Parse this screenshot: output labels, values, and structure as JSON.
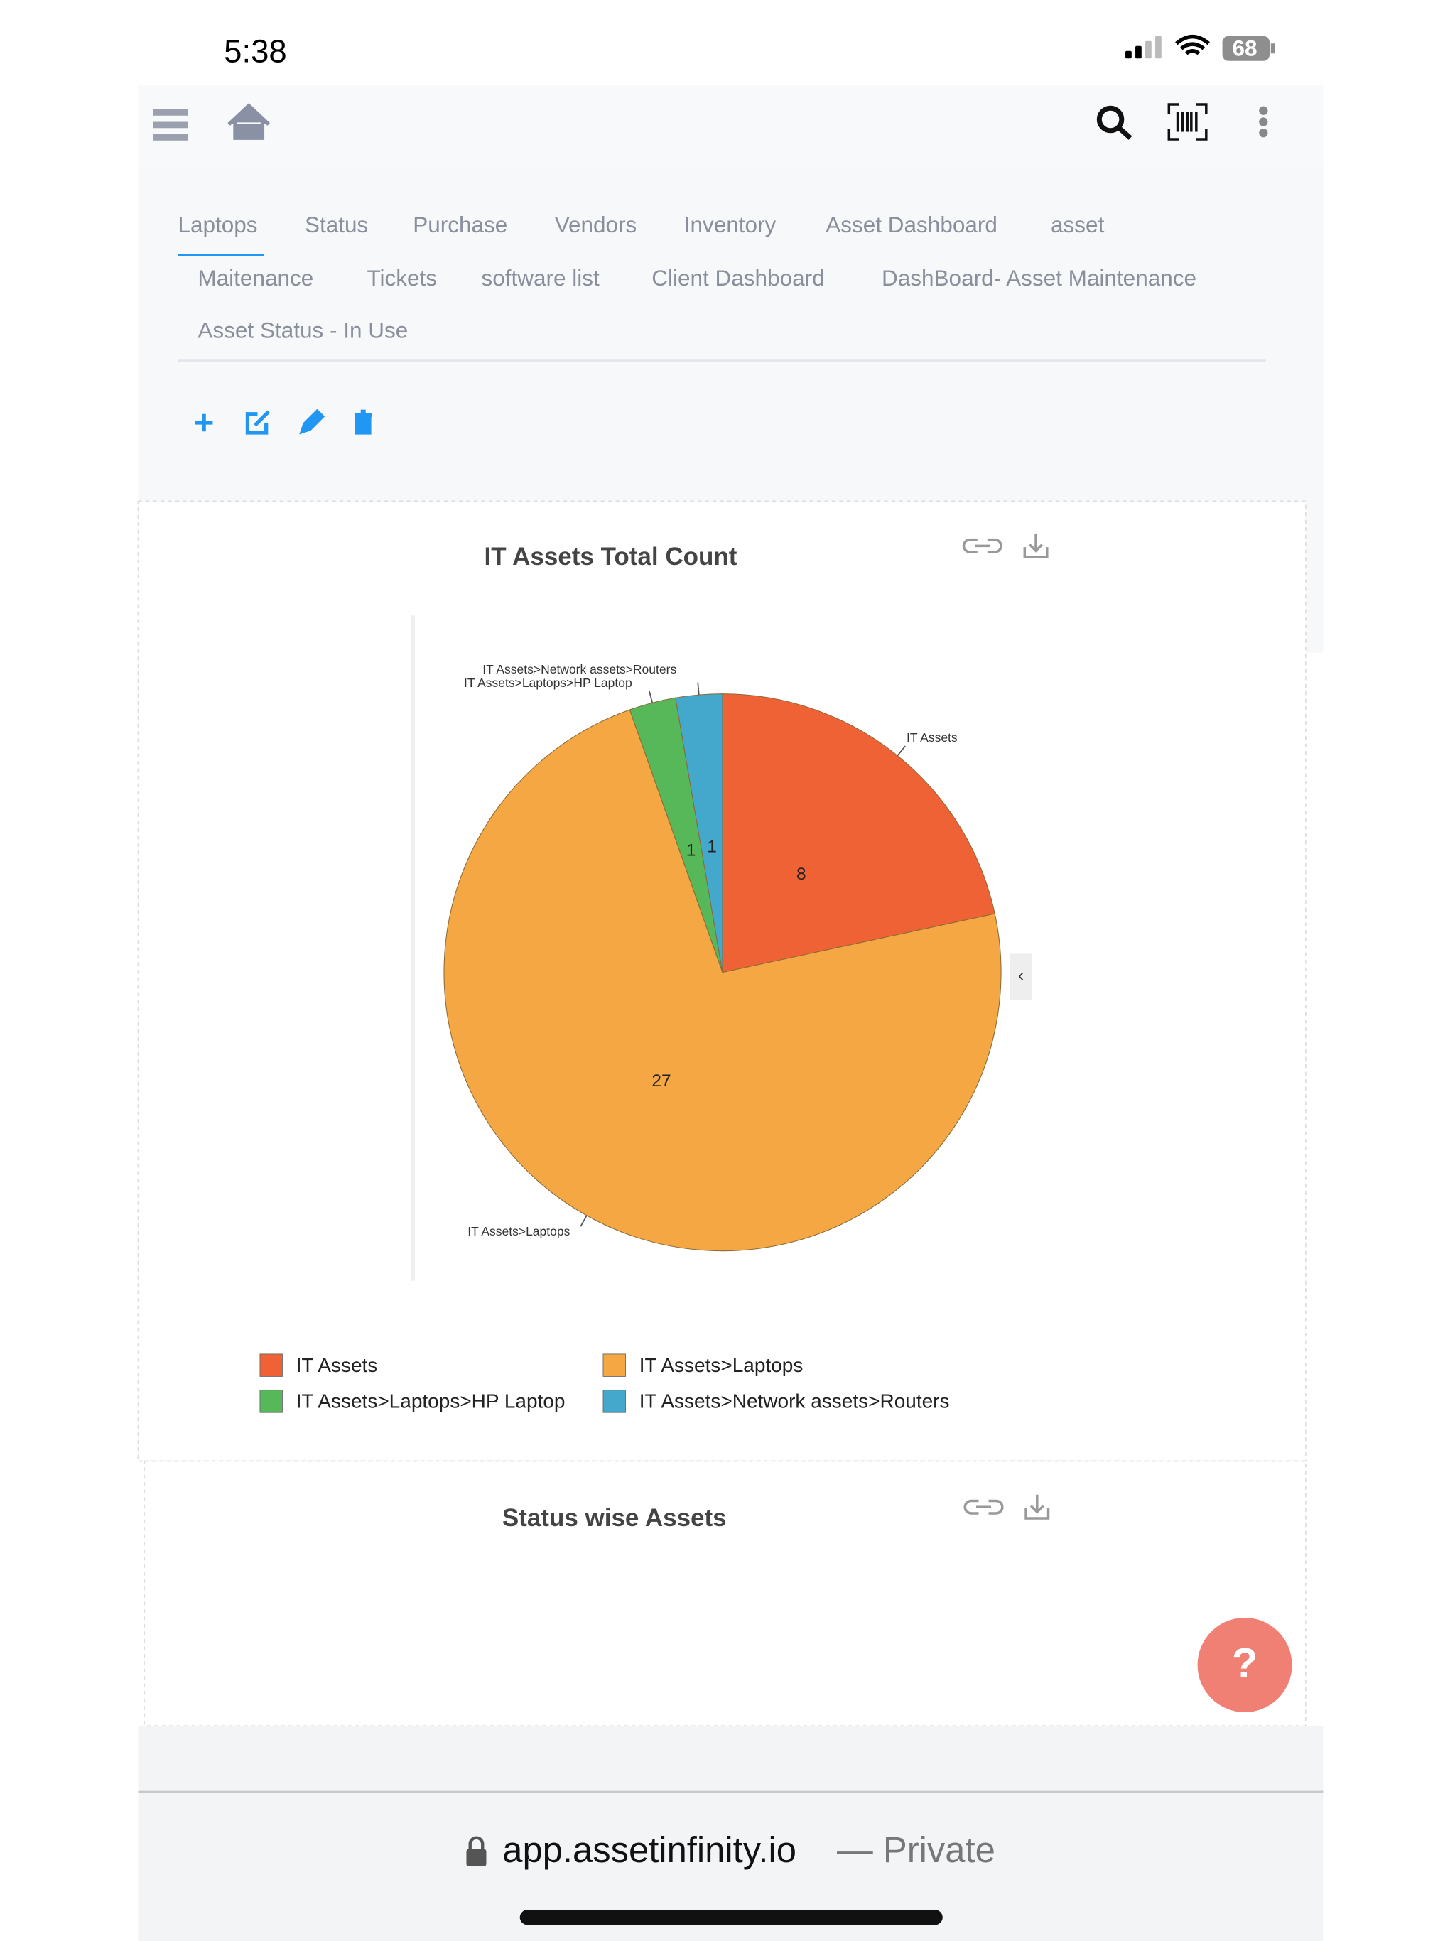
{
  "status_bar": {
    "time": "5:38",
    "battery": "68"
  },
  "tabs": [
    "Laptops",
    "Status",
    "Purchase",
    "Vendors",
    "Inventory",
    "Asset Dashboard",
    "asset",
    "Maitenance",
    "Tickets",
    "software list",
    "Client Dashboard",
    "DashBoard- Asset Maintenance",
    "Asset Status - In Use"
  ],
  "chart_data": {
    "type": "pie",
    "title": "IT Assets Total Count",
    "categories": [
      "IT Assets",
      "IT Assets>Laptops",
      "IT Assets>Laptops>HP Laptop",
      "IT Assets>Network assets>Routers"
    ],
    "values": [
      8,
      27,
      1,
      1
    ],
    "colors": [
      "#ef6236",
      "#f4a742",
      "#57b85a",
      "#44a8cc"
    ],
    "legend": true
  },
  "collapse_toggle": "‹",
  "second_chart": {
    "title": "Status wise Assets"
  },
  "help_button": "?",
  "address_bar": {
    "url": "app.assetinfinity.io",
    "mode": "— Private"
  }
}
